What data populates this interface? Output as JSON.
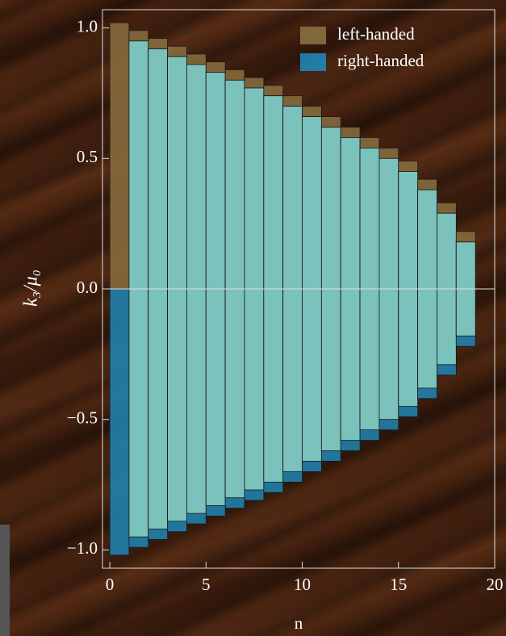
{
  "chart_data": {
    "type": "range_bar",
    "xlabel": "n",
    "ylabel": "k₃/μ₀",
    "x": [
      0,
      1,
      2,
      3,
      4,
      5,
      6,
      7,
      8,
      9,
      10,
      11,
      12,
      13,
      14,
      15,
      16,
      17,
      18
    ],
    "series": [
      {
        "name": "left-handed",
        "color": "#8a7040",
        "low": [
          0,
          -0.95,
          -0.92,
          -0.89,
          -0.86,
          -0.83,
          -0.8,
          -0.77,
          -0.74,
          -0.7,
          -0.66,
          -0.62,
          -0.58,
          -0.54,
          -0.5,
          -0.45,
          -0.38,
          -0.29,
          -0.18
        ],
        "high": [
          1.02,
          0.99,
          0.96,
          0.93,
          0.9,
          0.87,
          0.84,
          0.81,
          0.78,
          0.74,
          0.7,
          0.66,
          0.62,
          0.58,
          0.54,
          0.49,
          0.42,
          0.33,
          0.22
        ]
      },
      {
        "name": "right-handed",
        "color": "#1f86b5",
        "low": [
          -1.02,
          -0.99,
          -0.96,
          -0.93,
          -0.9,
          -0.87,
          -0.84,
          -0.81,
          -0.78,
          -0.74,
          -0.7,
          -0.66,
          -0.62,
          -0.58,
          -0.54,
          -0.49,
          -0.42,
          -0.33,
          -0.22
        ],
        "high": [
          0,
          0.95,
          0.92,
          0.89,
          0.86,
          0.83,
          0.8,
          0.77,
          0.74,
          0.7,
          0.66,
          0.62,
          0.58,
          0.54,
          0.5,
          0.45,
          0.38,
          0.29,
          0.18
        ]
      }
    ],
    "overlap_color": "#8ccfc2",
    "xlim": [
      -0.38,
      20
    ],
    "ylim": [
      -1.07,
      1.07
    ],
    "xticks": [
      0,
      5,
      10,
      15,
      20
    ],
    "yticks": [
      {
        "value": -1,
        "label": "−1.0"
      },
      {
        "value": -0.5,
        "label": "−0.5"
      },
      {
        "value": 0,
        "label": "0.0"
      },
      0.5,
      {
        "value": 1,
        "label": "1.0"
      }
    ],
    "legend": "upper right"
  }
}
